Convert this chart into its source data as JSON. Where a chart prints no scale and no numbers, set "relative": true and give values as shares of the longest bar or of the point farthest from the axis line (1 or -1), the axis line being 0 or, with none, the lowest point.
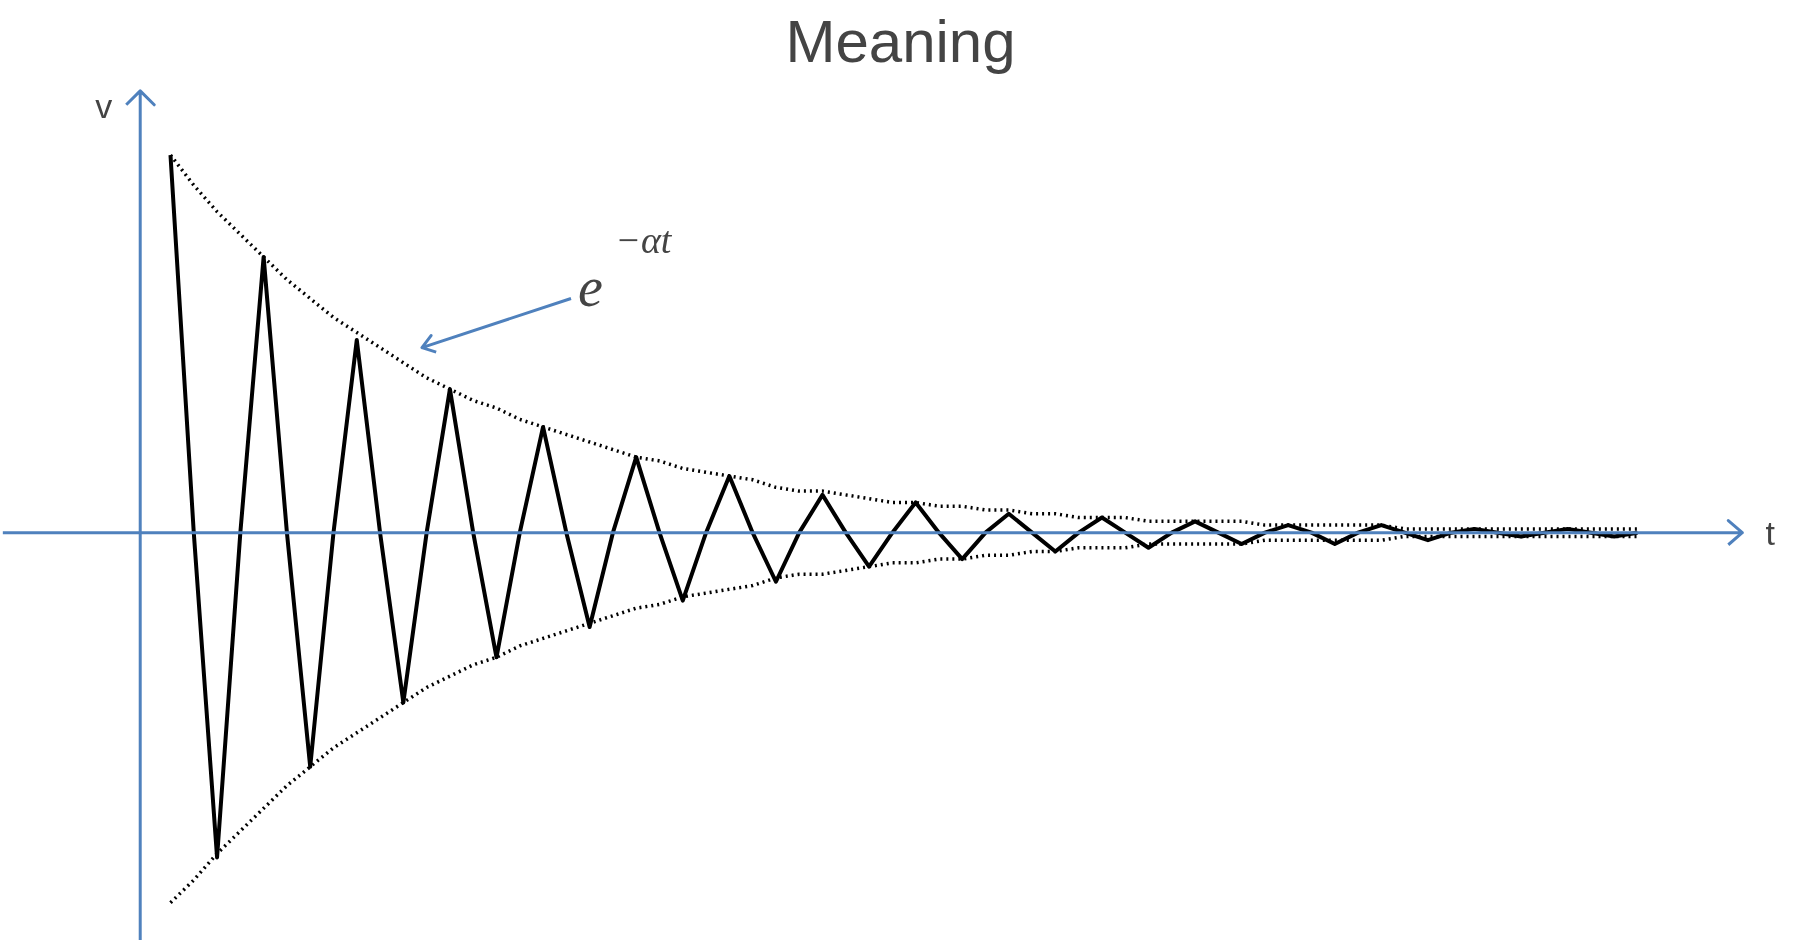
{
  "chart_data": {
    "type": "line",
    "relative": true,
    "title": "Meaning",
    "xlabel": "t",
    "ylabel": "v",
    "categories": [
      null,
      null,
      null,
      null,
      null,
      null,
      null,
      null,
      null,
      null,
      null,
      null,
      null,
      null,
      null,
      null,
      null,
      null,
      null,
      null,
      null,
      null,
      null,
      null,
      null,
      null,
      null,
      null,
      null,
      null,
      null,
      null,
      null,
      null,
      null,
      null,
      null,
      null,
      null,
      null,
      null,
      null,
      null,
      null,
      null,
      null,
      null,
      null,
      null,
      null,
      null,
      null,
      null,
      null,
      null,
      null,
      null,
      null,
      null,
      null,
      null,
      null,
      null,
      null
    ],
    "series": [
      {
        "color": "#000000",
        "line_style": "solid",
        "values": [
          1.0,
          0,
          -0.86,
          0,
          0.73,
          0,
          -0.62,
          0,
          0.51,
          0,
          -0.45,
          0,
          0.38,
          0,
          -0.33,
          0,
          0.28,
          0,
          -0.25,
          0,
          0.2,
          0,
          -0.18,
          0,
          0.15,
          0,
          -0.13,
          0,
          0.1,
          0,
          -0.09,
          0,
          0.08,
          0,
          -0.07,
          0,
          0.05,
          0,
          -0.05,
          0,
          0.04,
          0,
          -0.04,
          0,
          0.03,
          0,
          -0.03,
          0,
          0.02,
          0,
          -0.03,
          0,
          0.02,
          0,
          -0.02,
          0,
          0.01,
          0,
          -0.01,
          0,
          0.01,
          0,
          -0.01,
          0
        ]
      },
      {
        "color": "#000000",
        "line_style": "dotted",
        "values": [
          1.0,
          0.92,
          0.85,
          0.79,
          0.73,
          0.67,
          0.62,
          0.57,
          0.53,
          0.49,
          0.45,
          0.41,
          0.38,
          0.35,
          0.33,
          0.3,
          0.28,
          0.26,
          0.24,
          0.22,
          0.2,
          0.19,
          0.17,
          0.16,
          0.15,
          0.14,
          0.12,
          0.11,
          0.11,
          0.1,
          0.09,
          0.08,
          0.08,
          0.07,
          0.07,
          0.06,
          0.06,
          0.05,
          0.05,
          0.04,
          0.04,
          0.04,
          0.03,
          0.03,
          0.03,
          0.03,
          0.03,
          0.02,
          0.02,
          0.02,
          0.02,
          0.02,
          0.02,
          0.01,
          0.01,
          0.01,
          0.01,
          0.01,
          0.01,
          0.01,
          0.01,
          0.01,
          0.01,
          0.01
        ]
      },
      {
        "color": "#000000",
        "line_style": "dotted",
        "values": [
          -0.98,
          -0.92,
          -0.85,
          -0.79,
          -0.73,
          -0.67,
          -0.62,
          -0.57,
          -0.53,
          -0.49,
          -0.45,
          -0.41,
          -0.38,
          -0.35,
          -0.33,
          -0.3,
          -0.28,
          -0.26,
          -0.24,
          -0.22,
          -0.2,
          -0.19,
          -0.17,
          -0.16,
          -0.15,
          -0.14,
          -0.12,
          -0.11,
          -0.11,
          -0.1,
          -0.09,
          -0.08,
          -0.08,
          -0.07,
          -0.07,
          -0.06,
          -0.06,
          -0.05,
          -0.05,
          -0.04,
          -0.04,
          -0.04,
          -0.03,
          -0.03,
          -0.03,
          -0.03,
          -0.03,
          -0.02,
          -0.02,
          -0.02,
          -0.02,
          -0.02,
          -0.02,
          -0.01,
          -0.01,
          -0.01,
          -0.01,
          -0.01,
          -0.01,
          -0.01,
          -0.01,
          -0.01,
          -0.01,
          -0.01
        ]
      }
    ],
    "ref_lines": [
      {
        "axis": "y",
        "value": 0,
        "color": "#4f81bd"
      }
    ],
    "annotations": [
      "e$^{−αt}$"
    ]
  }
}
